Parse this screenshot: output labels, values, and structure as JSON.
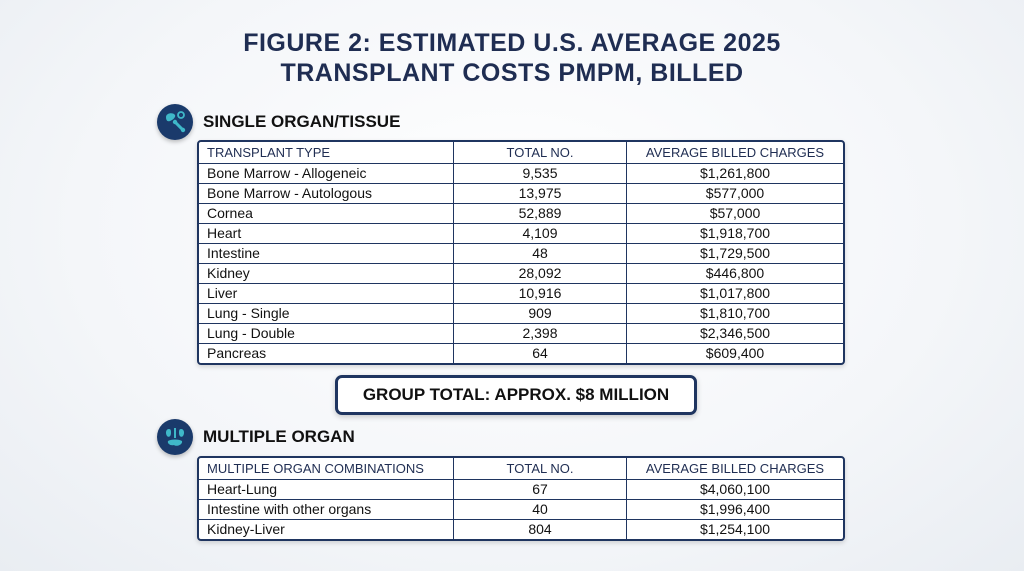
{
  "title_line1": "FIGURE 2: ESTIMATED U.S. AVERAGE 2025",
  "title_line2": "TRANSPLANT COSTS PMPM, BILLED",
  "single": {
    "heading": "SINGLE ORGAN/TISSUE",
    "icon": "organ-icon",
    "columns": [
      "TRANSPLANT TYPE",
      "TOTAL NO.",
      "AVERAGE BILLED CHARGES"
    ],
    "rows": [
      {
        "type": "Bone Marrow - Allogeneic",
        "total": "9,535",
        "charges": "$1,261,800"
      },
      {
        "type": "Bone Marrow - Autologous",
        "total": "13,975",
        "charges": "$577,000"
      },
      {
        "type": "Cornea",
        "total": "52,889",
        "charges": "$57,000"
      },
      {
        "type": "Heart",
        "total": "4,109",
        "charges": "$1,918,700"
      },
      {
        "type": "Intestine",
        "total": "48",
        "charges": "$1,729,500"
      },
      {
        "type": "Kidney",
        "total": "28,092",
        "charges": "$446,800"
      },
      {
        "type": "Liver",
        "total": "10,916",
        "charges": "$1,017,800"
      },
      {
        "type": "Lung - Single",
        "total": "909",
        "charges": "$1,810,700"
      },
      {
        "type": "Lung - Double",
        "total": "2,398",
        "charges": "$2,346,500"
      },
      {
        "type": "Pancreas",
        "total": "64",
        "charges": "$609,400"
      }
    ]
  },
  "group_total": "GROUP TOTAL: APPROX. $8 MILLION",
  "multiple": {
    "heading": "MULTIPLE ORGAN",
    "icon": "multiple-organ-icon",
    "columns": [
      "MULTIPLE ORGAN COMBINATIONS",
      "TOTAL NO.",
      "AVERAGE BILLED CHARGES"
    ],
    "rows": [
      {
        "type": "Heart-Lung",
        "total": "67",
        "charges": "$4,060,100"
      },
      {
        "type": "Intestine with other organs",
        "total": "40",
        "charges": "$1,996,400"
      },
      {
        "type": "Kidney-Liver",
        "total": "804",
        "charges": "$1,254,100"
      }
    ]
  },
  "colors": {
    "navy": "#1f3560",
    "title": "#1f2d52",
    "icon_fill": "#3fb8c9"
  }
}
